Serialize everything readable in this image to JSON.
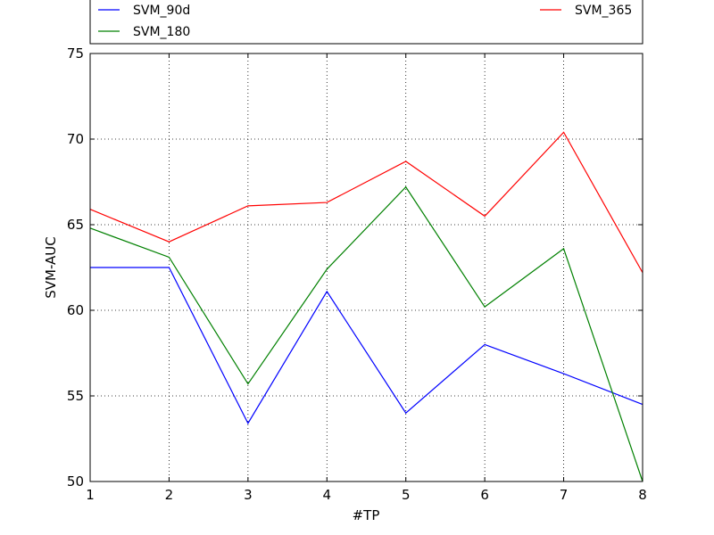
{
  "chart_data": {
    "type": "line",
    "title": "",
    "xlabel": "#TP",
    "ylabel": "SVM-AUC",
    "x": [
      1,
      2,
      3,
      4,
      5,
      6,
      7,
      8
    ],
    "xlim": [
      1,
      8
    ],
    "ylim": [
      50,
      75
    ],
    "xticks": [
      "1",
      "2",
      "3",
      "4",
      "5",
      "6",
      "7",
      "8"
    ],
    "yticks": [
      "50",
      "55",
      "60",
      "65",
      "70",
      "75"
    ],
    "grid": true,
    "legend_position": "top, above plot",
    "series": [
      {
        "name": "SVM_90d",
        "color": "#0000ff",
        "values": [
          62.5,
          62.5,
          53.4,
          61.1,
          54.0,
          58.0,
          56.3,
          54.5
        ]
      },
      {
        "name": "SVM_180",
        "color": "#008000",
        "values": [
          64.8,
          63.1,
          55.7,
          62.4,
          67.2,
          60.2,
          63.6,
          50.0
        ]
      },
      {
        "name": "SVM_365",
        "color": "#ff0000",
        "values": [
          65.9,
          64.0,
          66.1,
          66.3,
          68.7,
          65.5,
          70.4,
          62.2
        ]
      }
    ]
  }
}
